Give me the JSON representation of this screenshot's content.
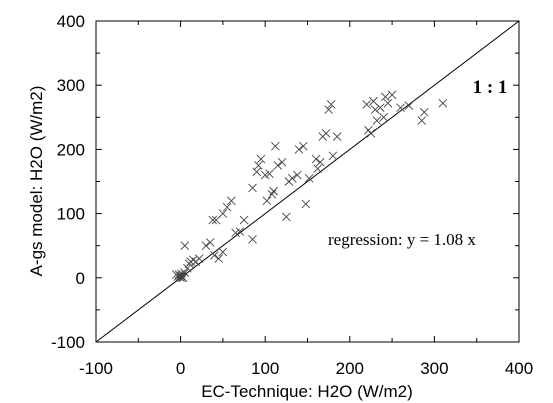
{
  "chart_data": {
    "type": "scatter",
    "xlabel": "EC-Technique: H2O (W/m2)",
    "ylabel": "A-gs model: H2O (W/m2)",
    "xlim": [
      -100,
      400
    ],
    "ylim": [
      -100,
      400
    ],
    "xticks": [
      "-100",
      "0",
      "100",
      "200",
      "300",
      "400"
    ],
    "yticks": [
      "-100",
      "0",
      "100",
      "200",
      "300",
      "400"
    ],
    "grid": false,
    "marker": "x",
    "reference_line": {
      "label": "1 : 1",
      "slope": 1
    },
    "annotation": "regression: y = 1.08 x",
    "points": [
      [
        0,
        0
      ],
      [
        1,
        2
      ],
      [
        2,
        1
      ],
      [
        0,
        3
      ],
      [
        3,
        0
      ],
      [
        -2,
        5
      ],
      [
        5,
        8
      ],
      [
        -3,
        2
      ],
      [
        1,
        6
      ],
      [
        8,
        15
      ],
      [
        10,
        22
      ],
      [
        12,
        25
      ],
      [
        15,
        28
      ],
      [
        18,
        25
      ],
      [
        22,
        30
      ],
      [
        5,
        50
      ],
      [
        -5,
        5
      ],
      [
        30,
        50
      ],
      [
        35,
        55
      ],
      [
        40,
        35
      ],
      [
        45,
        30
      ],
      [
        50,
        40
      ],
      [
        38,
        90
      ],
      [
        42,
        90
      ],
      [
        50,
        100
      ],
      [
        55,
        110
      ],
      [
        60,
        120
      ],
      [
        65,
        70
      ],
      [
        70,
        72
      ],
      [
        75,
        90
      ],
      [
        85,
        60
      ],
      [
        85,
        140
      ],
      [
        90,
        165
      ],
      [
        92,
        175
      ],
      [
        95,
        185
      ],
      [
        100,
        160
      ],
      [
        102,
        120
      ],
      [
        105,
        162
      ],
      [
        108,
        130
      ],
      [
        110,
        135
      ],
      [
        112,
        205
      ],
      [
        115,
        175
      ],
      [
        120,
        180
      ],
      [
        125,
        95
      ],
      [
        128,
        150
      ],
      [
        132,
        155
      ],
      [
        138,
        160
      ],
      [
        140,
        200
      ],
      [
        145,
        205
      ],
      [
        148,
        115
      ],
      [
        152,
        155
      ],
      [
        160,
        185
      ],
      [
        162,
        170
      ],
      [
        165,
        180
      ],
      [
        168,
        220
      ],
      [
        172,
        225
      ],
      [
        175,
        262
      ],
      [
        178,
        270
      ],
      [
        180,
        190
      ],
      [
        185,
        220
      ],
      [
        220,
        270
      ],
      [
        222,
        230
      ],
      [
        225,
        225
      ],
      [
        228,
        275
      ],
      [
        230,
        262
      ],
      [
        232,
        245
      ],
      [
        236,
        265
      ],
      [
        240,
        250
      ],
      [
        242,
        282
      ],
      [
        245,
        272
      ],
      [
        250,
        285
      ],
      [
        260,
        265
      ],
      [
        270,
        268
      ],
      [
        285,
        245
      ],
      [
        288,
        258
      ],
      [
        310,
        272
      ]
    ]
  }
}
